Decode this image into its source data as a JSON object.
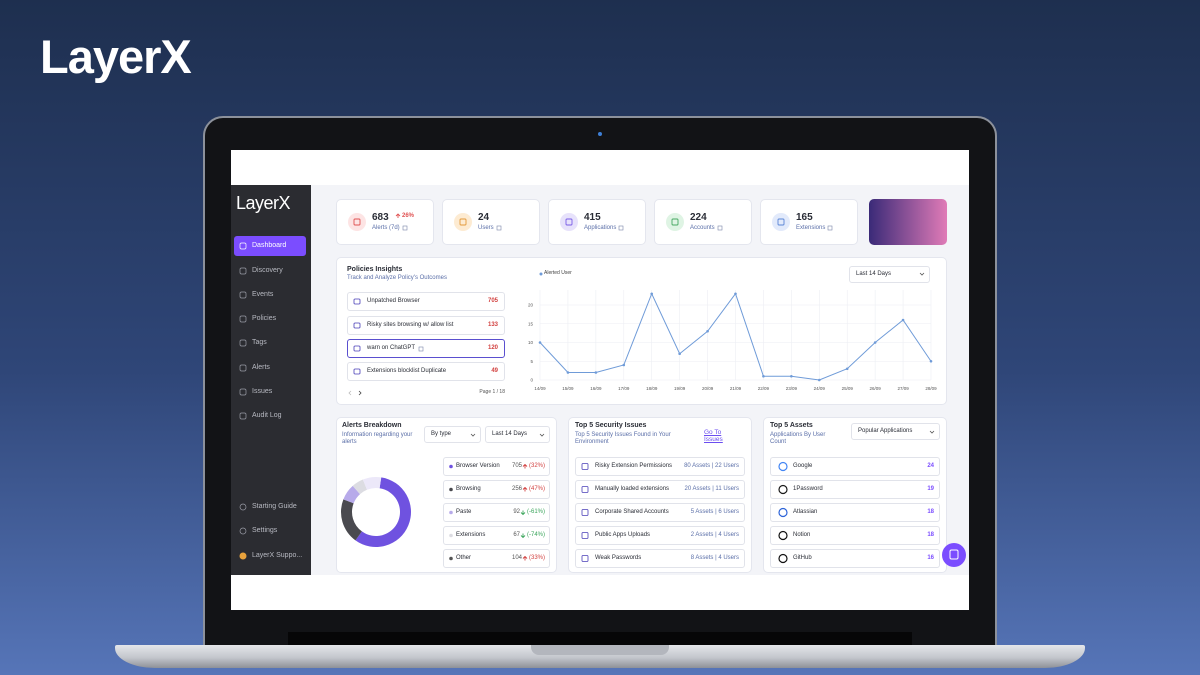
{
  "brand": {
    "logo": "LayerX"
  },
  "sidebar": {
    "logo": "LayerX",
    "active_nav": 0,
    "nav": [
      "Dashboard",
      "Discovery",
      "Events",
      "Policies",
      "Tags",
      "Alerts",
      "Issues",
      "Audit Log"
    ],
    "footer": [
      "Starting Guide",
      "Settings",
      "LayerX Suppo..."
    ]
  },
  "stats": [
    {
      "value": 683,
      "label": "Alerts (7d)",
      "change": "26%",
      "color": "#e05252",
      "bg": "#fde4e4"
    },
    {
      "value": 24,
      "label": "Users",
      "color": "#e39a3b",
      "bg": "#fdebd2"
    },
    {
      "value": 415,
      "label": "Applications",
      "color": "#7a5ce6",
      "bg": "#e7e2fb"
    },
    {
      "value": 224,
      "label": "Accounts",
      "color": "#47a862",
      "bg": "#dff4e4"
    },
    {
      "value": 165,
      "label": "Extensions",
      "color": "#5b86d6",
      "bg": "#e2eafb"
    }
  ],
  "policies": {
    "title": "Policies Insights",
    "subtitle": "Track and Analyze Policy's Outcomes",
    "items": [
      {
        "name": "Unpatched Browser",
        "value": 705
      },
      {
        "name": "Risky sites browsing w/ allow list",
        "value": 133
      },
      {
        "name": "warn on ChatGPT",
        "value": 120
      },
      {
        "name": "Extensions blocklist Duplicate",
        "value": 49
      }
    ],
    "selected_item": 2,
    "pagination": "Page 1 / 18",
    "chart": {
      "type": "line",
      "legend": "Alerted User",
      "dropdown": "Last 14 Days",
      "color": "#6f9bd8",
      "x": [
        "14/09",
        "15/09",
        "16/09",
        "17/09",
        "18/09",
        "19/09",
        "20/09",
        "21/09",
        "22/09",
        "23/09",
        "24/09",
        "25/09",
        "26/09",
        "27/09",
        "28/09"
      ],
      "values": [
        10,
        2,
        2,
        4,
        23,
        7,
        13,
        23,
        1,
        1,
        0,
        3,
        10,
        16,
        5
      ],
      "ylim": [
        0,
        24
      ],
      "yticks": [
        0,
        5,
        10,
        15,
        20
      ],
      "grid": true
    }
  },
  "alerts": {
    "title": "Alerts Breakdown",
    "subtitle": "Information regarding your alerts",
    "filters": [
      "By type",
      "Last 14 Days"
    ],
    "items": [
      {
        "name": "Browser Version",
        "value": 705,
        "change": "(32%)",
        "trend": "up",
        "color": "#6f52e0"
      },
      {
        "name": "Browsing",
        "value": 256,
        "change": "(47%)",
        "trend": "up",
        "color": "#4a4a4f"
      },
      {
        "name": "Paste",
        "value": 92,
        "change": "(-61%)",
        "trend": "down",
        "color": "#b7aaea"
      },
      {
        "name": "Extensions",
        "value": 67,
        "change": "(-74%)",
        "trend": "down",
        "color": "#dcdce2"
      },
      {
        "name": "Other",
        "value": 104,
        "change": "(33%)",
        "trend": "up",
        "color": "#ece8f9"
      }
    ]
  },
  "issues": {
    "title": "Top 5 Security Issues",
    "subtitle": "Top 5 Security Issues Found in Your Environment",
    "link": "Go To Issues",
    "items": [
      {
        "name": "Risky Extension Permissions",
        "count": "80 Assets | 22 Users"
      },
      {
        "name": "Manually loaded extensions",
        "count": "20 Assets | 11 Users"
      },
      {
        "name": "Corporate Shared Accounts",
        "count": "5 Assets | 6 Users"
      },
      {
        "name": "Public Apps Uploads",
        "count": "2 Assets | 4 Users"
      },
      {
        "name": "Weak Passwords",
        "count": "8 Assets | 4 Users"
      }
    ]
  },
  "assets": {
    "title": "Top 5 Assets",
    "subtitle": "Applications By User Count",
    "dropdown": "Popular Applications",
    "items": [
      {
        "name": "Google",
        "value": 24
      },
      {
        "name": "1Password",
        "value": 19
      },
      {
        "name": "Atlassian",
        "value": 18
      },
      {
        "name": "Notion",
        "value": 18
      },
      {
        "name": "GitHub",
        "value": 16
      }
    ]
  }
}
